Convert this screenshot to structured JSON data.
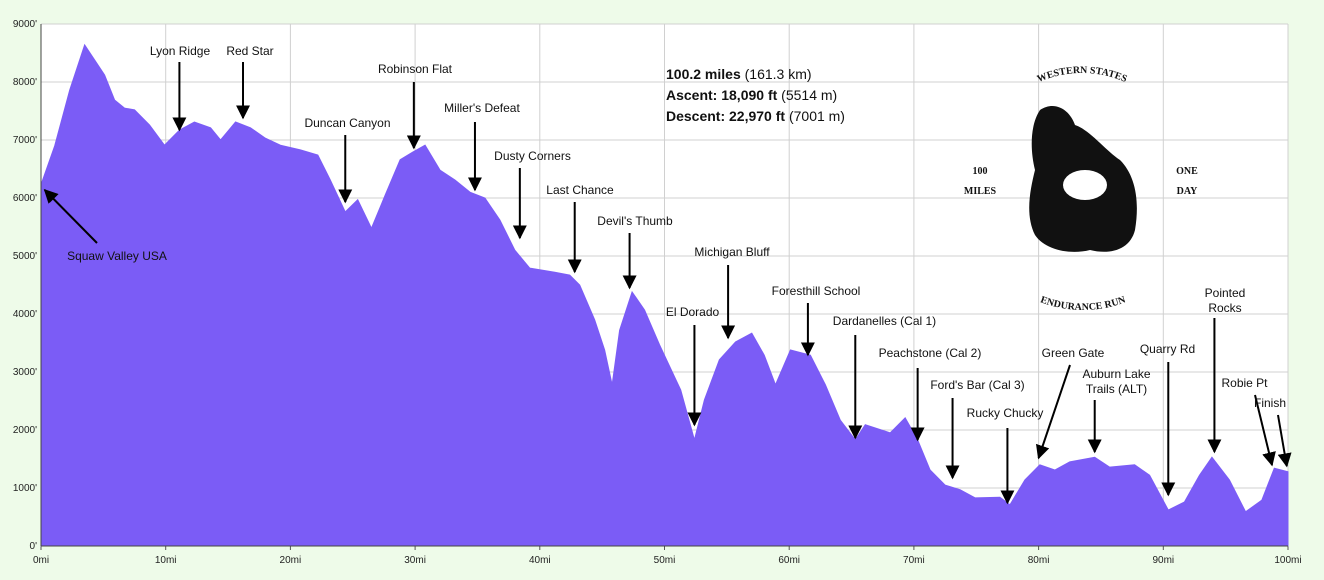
{
  "chart_data": {
    "type": "area",
    "x": [
      0,
      1.1,
      2.3,
      3.5,
      4.3,
      5.1,
      5.9,
      6.7,
      7.5,
      8.7,
      9.9,
      11.1,
      12.3,
      13.6,
      14.4,
      15.6,
      16.8,
      18,
      19.2,
      20.8,
      22.2,
      23.2,
      24.4,
      25.4,
      26.5,
      27.6,
      28.8,
      29.8,
      30.8,
      32,
      33.2,
      34.4,
      35.6,
      36.8,
      38,
      39.2,
      41.2,
      42.4,
      43.2,
      44.4,
      45.2,
      45.8,
      46.4,
      47.4,
      48.4,
      49.6,
      51.3,
      52.4,
      53.2,
      54.4,
      55.7,
      57,
      58,
      58.9,
      60.1,
      61.7,
      62.9,
      64.1,
      65.3,
      66.1,
      68.1,
      69.3,
      70.3,
      71.3,
      72.5,
      73.7,
      74.9,
      76.9,
      77.7,
      78.9,
      80.1,
      81.3,
      82.5,
      84.5,
      85.7,
      87.7,
      88.9,
      90.4,
      91.7,
      92.9,
      93.9,
      95.3,
      96.6,
      97.9,
      98.9,
      100
    ],
    "values": [
      6230,
      6900,
      7860,
      8640,
      8380,
      8120,
      7690,
      7550,
      7520,
      7260,
      6910,
      7170,
      7310,
      7210,
      7000,
      7310,
      7210,
      7030,
      6910,
      6830,
      6740,
      6310,
      5760,
      5970,
      5480,
      6050,
      6660,
      6790,
      6910,
      6480,
      6310,
      6100,
      6000,
      5620,
      5100,
      4790,
      4720,
      4670,
      4500,
      3900,
      3380,
      2780,
      3720,
      4380,
      4070,
      3470,
      2690,
      1830,
      2520,
      3210,
      3520,
      3670,
      3290,
      2780,
      3380,
      3290,
      2780,
      2170,
      1830,
      2090,
      1950,
      2210,
      1830,
      1310,
      1050,
      970,
      830,
      840,
      710,
      1140,
      1400,
      1310,
      1450,
      1530,
      1360,
      1400,
      1220,
      620,
      760,
      1220,
      1530,
      1140,
      590,
      790,
      1340,
      1280
    ],
    "color": "#7b5cf6",
    "xlim": [
      0,
      100
    ],
    "ylim": [
      0,
      9000
    ],
    "xticks": [
      {
        "value": 0,
        "label": "0mi"
      },
      {
        "value": 10,
        "label": "10mi"
      },
      {
        "value": 20,
        "label": "20mi"
      },
      {
        "value": 30,
        "label": "30mi"
      },
      {
        "value": 40,
        "label": "40mi"
      },
      {
        "value": 50,
        "label": "50mi"
      },
      {
        "value": 60,
        "label": "60mi"
      },
      {
        "value": 70,
        "label": "70mi"
      },
      {
        "value": 80,
        "label": "80mi"
      },
      {
        "value": 90,
        "label": "90mi"
      },
      {
        "value": 100,
        "label": "100mi"
      }
    ],
    "yticks": [
      {
        "value": 0,
        "label": "0'"
      },
      {
        "value": 1000,
        "label": "1000'"
      },
      {
        "value": 2000,
        "label": "2000'"
      },
      {
        "value": 3000,
        "label": "3000'"
      },
      {
        "value": 4000,
        "label": "4000'"
      },
      {
        "value": 5000,
        "label": "5000'"
      },
      {
        "value": 6000,
        "label": "6000'"
      },
      {
        "value": 7000,
        "label": "7000'"
      },
      {
        "value": 8000,
        "label": "8000'"
      },
      {
        "value": 9000,
        "label": "9000'"
      }
    ],
    "grid": true,
    "annotations": [
      {
        "text": "Squaw Valley USA",
        "x": 0.3
      },
      {
        "text": "Lyon Ridge",
        "x": 11.1
      },
      {
        "text": "Red Star",
        "x": 16.2
      },
      {
        "text": "Duncan Canyon",
        "x": 24.4
      },
      {
        "text": "Robinson Flat",
        "x": 29.9
      },
      {
        "text": "Miller's Defeat",
        "x": 34.8
      },
      {
        "text": "Dusty Corners",
        "x": 38.4
      },
      {
        "text": "Last Chance",
        "x": 42.8
      },
      {
        "text": "Devil's Thumb",
        "x": 47.2
      },
      {
        "text": "El Dorado",
        "x": 52.4
      },
      {
        "text": "Michigan Bluff",
        "x": 55.1
      },
      {
        "text": "Foresthill School",
        "x": 61.5
      },
      {
        "text": "Dardanelles (Cal 1)",
        "x": 65.3
      },
      {
        "text": "Peachstone (Cal 2)",
        "x": 70.3
      },
      {
        "text": "Ford's Bar (Cal 3)",
        "x": 73.1
      },
      {
        "text": "Rucky Chucky",
        "x": 77.5
      },
      {
        "text": "Green Gate",
        "x": 80.0
      },
      {
        "text": "Auburn Lake Trails (ALT)",
        "x": 84.5
      },
      {
        "text": "Quarry Rd",
        "x": 90.4
      },
      {
        "text": "Pointed Rocks",
        "x": 94.1
      },
      {
        "text": "Robie Pt",
        "x": 98.7
      },
      {
        "text": "Finish",
        "x": 99.9
      }
    ],
    "stats": [
      {
        "label": "100.2 miles",
        "detail": "(161.3 km)"
      },
      {
        "label": "Ascent: 18,090 ft",
        "detail": "(5514 m)"
      },
      {
        "label": "Descent: 22,970 ft",
        "detail": "(7001 m)"
      }
    ],
    "logo": {
      "top": "WESTERN STATES",
      "bottom": "ENDURANCE RUN",
      "left": [
        "100",
        "MILES"
      ],
      "right": [
        "ONE",
        "DAY"
      ]
    }
  }
}
